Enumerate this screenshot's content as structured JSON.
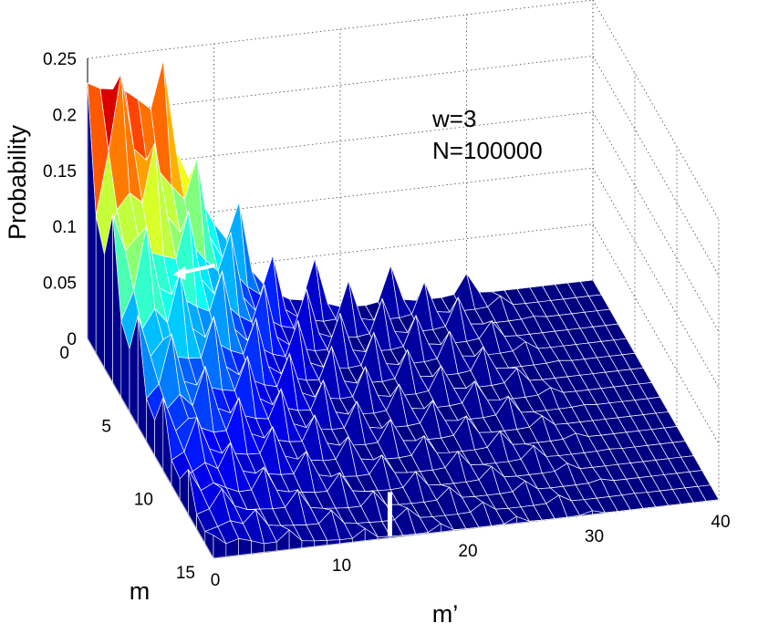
{
  "chart_data": {
    "type": "surface",
    "colormap": "jet",
    "zlabel": "Probability",
    "xlabel": "m’",
    "ylabel": "m",
    "xlim": [
      0,
      40
    ],
    "ylim": [
      0,
      15
    ],
    "zlim": [
      0,
      0.25
    ],
    "xticks": [
      "0",
      "10",
      "20",
      "30",
      "40"
    ],
    "yticks": [
      "0",
      "5",
      "10",
      "15"
    ],
    "zticks": [
      "0",
      "0.05",
      "0.1",
      "0.15",
      "0.2",
      "0.25"
    ],
    "grid": true,
    "annotations": [
      "w=3",
      "N=100000"
    ],
    "peak": {
      "m": 0,
      "m_prime": 2,
      "probability": 0.22
    },
    "surface_support": {
      "m_range": [
        0,
        15
      ],
      "m_prime_range": [
        0,
        40
      ],
      "nonzero_m_prime_max": 34
    },
    "markers": [
      {
        "label": "white-arrow",
        "m": 3,
        "m_prime": 1,
        "direction": "left"
      },
      {
        "label": "white-bar",
        "m": 15,
        "m_prime": 14
      }
    ]
  }
}
